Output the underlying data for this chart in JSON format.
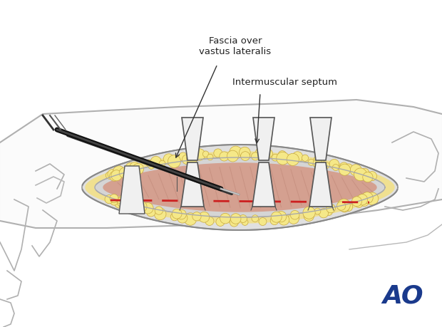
{
  "background_color": "#ffffff",
  "figure_width": 6.2,
  "figure_height": 4.59,
  "dpi": 100,
  "label_fascia": "Fascia over\nvastus lateralis",
  "label_septum": "Intermuscular septum",
  "ao_text": "AO",
  "ao_color": "#1a3a8c",
  "text_color": "#222222",
  "line_color": "#444444",
  "fat_color": "#f0e090",
  "fat_edge": "#c8a840",
  "fascia_color": "#d8d8d8",
  "muscle_color": "#d4a090",
  "muscle_dark": "#c08878",
  "retractor_color": "#f0f0f0",
  "retractor_edge": "#555555",
  "skin_color": "#e8e8e8",
  "skin_edge": "#999999",
  "dashed_line_color": "#cc2020",
  "scalpel_color": "#222222"
}
